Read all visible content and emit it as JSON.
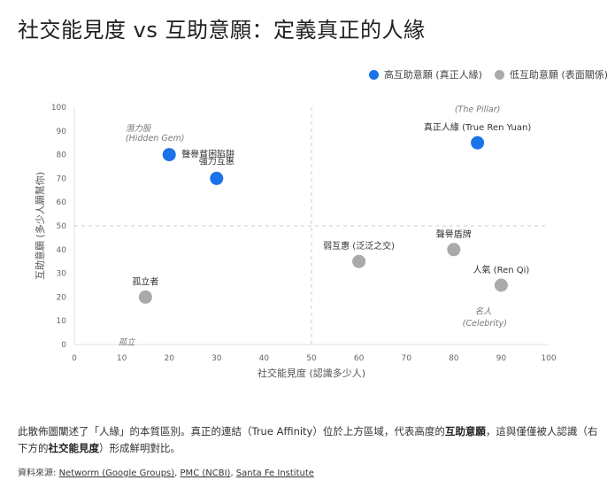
{
  "title": "社交能見度 vs 互助意願：定義真正的人緣",
  "legend": [
    {
      "label": "高互助意願 (真正人緣)",
      "color": "#1a73e8"
    },
    {
      "label": "低互助意願 (表面關係)",
      "color": "#aaaaaa"
    }
  ],
  "chart_data": {
    "type": "scatter",
    "title": "社交能見度 vs 互助意願：定義真正的人緣",
    "xlabel": "社交能見度 (認識多少人)",
    "ylabel": "互助意願 (多少人願幫你)",
    "xlim": [
      0,
      100
    ],
    "ylim": [
      0,
      100
    ],
    "x_ticks": [
      0,
      10,
      20,
      30,
      40,
      50,
      60,
      70,
      80,
      90,
      100
    ],
    "y_ticks": [
      0,
      10,
      20,
      30,
      40,
      50,
      60,
      70,
      80,
      90,
      100
    ],
    "grid": false,
    "reference_lines": {
      "x": 50,
      "y": 50,
      "style": "dashed"
    },
    "legend_position": "top-right",
    "series": [
      {
        "name": "高互助意願 (真正人緣)",
        "color": "#1a73e8",
        "points": [
          {
            "x": 20,
            "y": 80,
            "label": "聲譽貧困陷阱"
          },
          {
            "x": 30,
            "y": 70,
            "label": "強力互惠"
          },
          {
            "x": 85,
            "y": 85,
            "label": "真正人緣 (True Ren Yuan)"
          }
        ]
      },
      {
        "name": "低互助意願 (表面關係)",
        "color": "#aaaaaa",
        "points": [
          {
            "x": 15,
            "y": 20,
            "label": "孤立者"
          },
          {
            "x": 60,
            "y": 35,
            "label": "弱互惠 (泛泛之交)"
          },
          {
            "x": 80,
            "y": 40,
            "label": "聲譽盾牌"
          },
          {
            "x": 90,
            "y": 25,
            "label": "人氣 (Ren Qi)"
          }
        ]
      }
    ],
    "annotations": [
      {
        "text": "潛力股",
        "x": 22,
        "y": 91
      },
      {
        "text": "(Hidden Gem)",
        "x": 22,
        "y": 87
      },
      {
        "text": "(The Pillar)",
        "x": 85,
        "y": 99
      },
      {
        "text": "名人",
        "x": 88,
        "y": 14
      },
      {
        "text": "(Celebrity)",
        "x": 86,
        "y": 9
      },
      {
        "text": "孤立",
        "x": 13,
        "y": 1
      }
    ]
  },
  "description": {
    "part1": "此散佈圖闡述了「人緣」的本質區別。真正的連結（True Affinity）位於上方區域，代表高度的",
    "bold1": "互助意願",
    "part2": "，這與僅僅被人認識（右下方的",
    "bold2": "社交能見度",
    "part3": "）形成鮮明對比。"
  },
  "sources": {
    "label": "資料來源: ",
    "links": [
      "Networm (Google Groups)",
      "PMC (NCBI)",
      "Santa Fe Institute"
    ]
  }
}
